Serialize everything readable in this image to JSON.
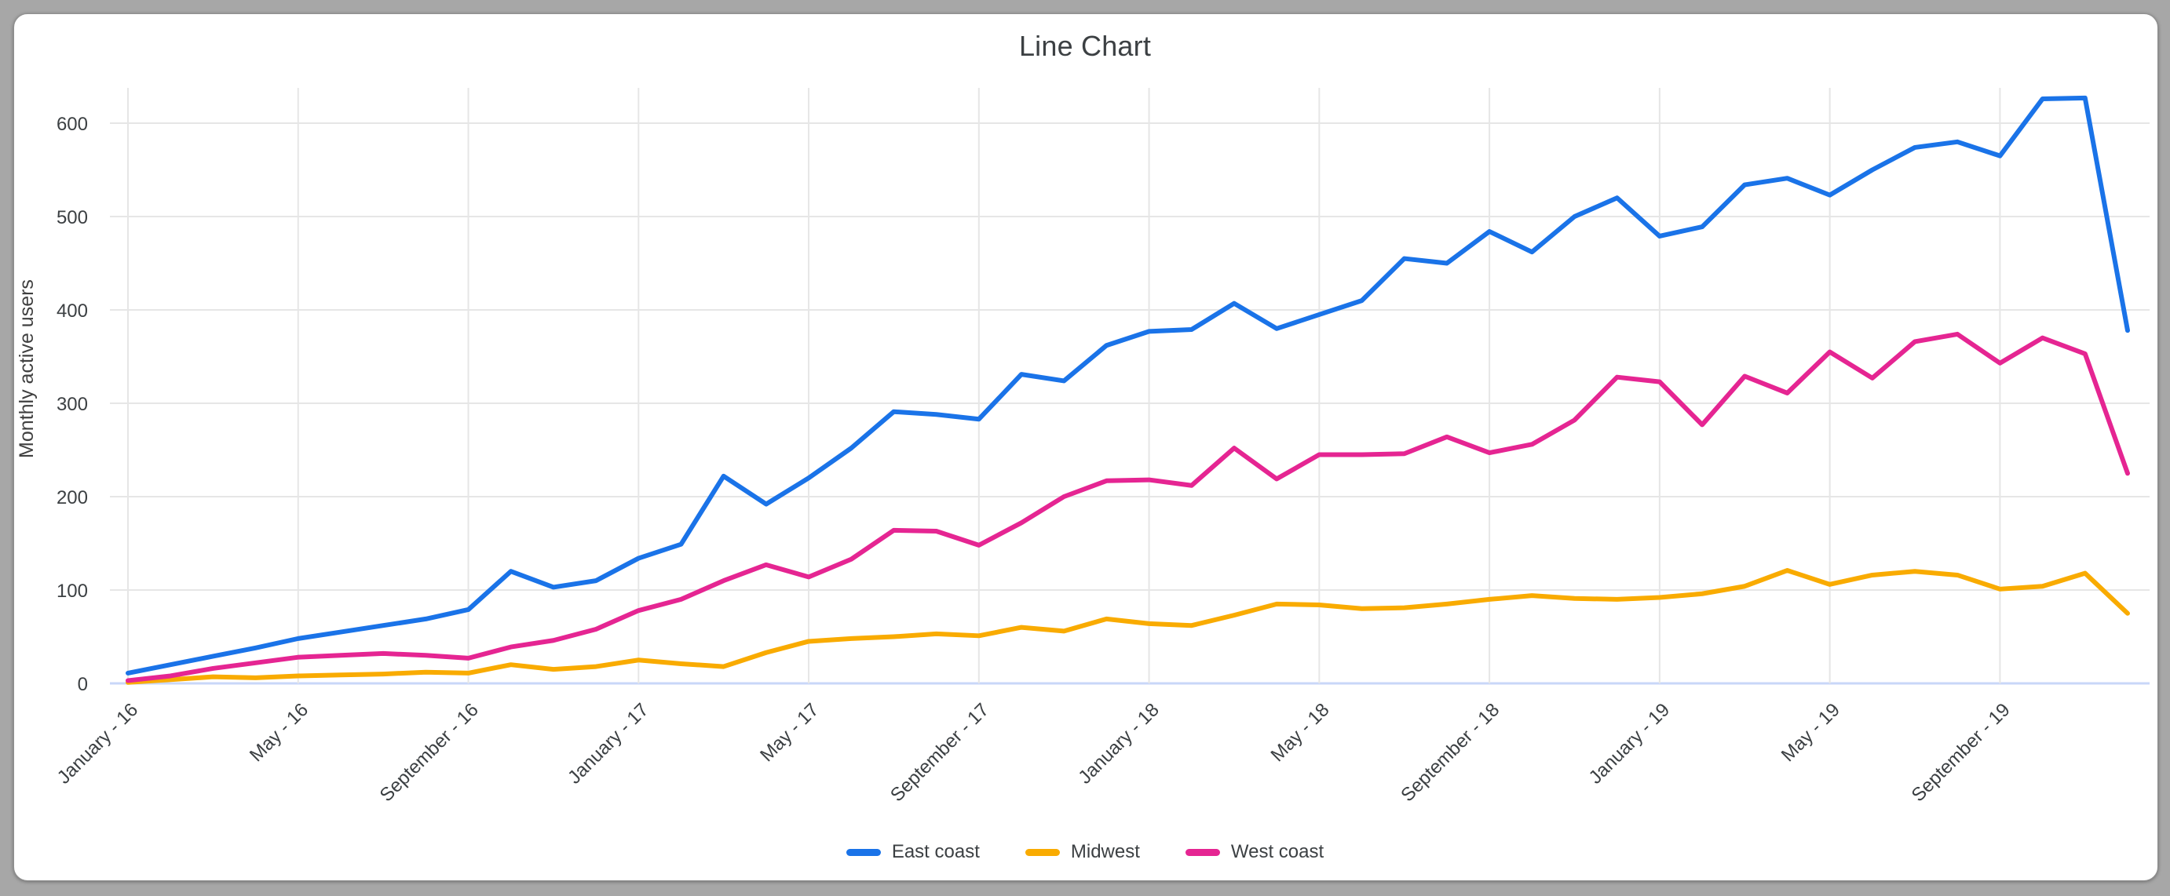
{
  "window": {
    "background_color": "#a7a7a7",
    "card_color": "#ffffff"
  },
  "chart": {
    "title": "Line Chart",
    "y_axis_title": "Monthly active users",
    "text_color": "#3c4043",
    "gridline_color": "#e6e6e6",
    "baseline_color": "#c9d7f8"
  },
  "legend": {
    "items": [
      {
        "label": "East coast",
        "color": "#1a73e8"
      },
      {
        "label": "Midwest",
        "color": "#f9ab00"
      },
      {
        "label": "West coast",
        "color": "#e52592"
      }
    ]
  },
  "chart_data": {
    "type": "line",
    "title": "Line Chart",
    "xlabel": "",
    "ylabel": "Monthly active users",
    "ylim": [
      0,
      600
    ],
    "y_ticks": [
      0,
      100,
      200,
      300,
      400,
      500,
      600
    ],
    "n_points": 48,
    "x_tick_every": 4,
    "x_tick_labels": [
      "January - 16",
      "May - 16",
      "September - 16",
      "January - 17",
      "May - 17",
      "September - 17",
      "January - 18",
      "May - 18",
      "September - 18",
      "January - 19",
      "May - 19",
      "September - 19"
    ],
    "grid": true,
    "legend_position": "bottom",
    "series": [
      {
        "name": "East coast",
        "color": "#1a73e8",
        "values": [
          11,
          20,
          29,
          38,
          48,
          55,
          62,
          69,
          79,
          120,
          103,
          110,
          134,
          149,
          222,
          192,
          220,
          252,
          291,
          288,
          283,
          331,
          324,
          362,
          377,
          379,
          407,
          380,
          395,
          410,
          455,
          450,
          484,
          462,
          500,
          520,
          479,
          489,
          534,
          541,
          523,
          550,
          574,
          580,
          565,
          626,
          627,
          378
        ]
      },
      {
        "name": "Midwest",
        "color": "#f9ab00",
        "values": [
          1,
          4,
          7,
          6,
          8,
          9,
          10,
          12,
          11,
          20,
          15,
          18,
          25,
          21,
          18,
          33,
          45,
          48,
          50,
          53,
          51,
          60,
          56,
          69,
          64,
          62,
          73,
          85,
          84,
          80,
          81,
          85,
          90,
          94,
          91,
          90,
          92,
          96,
          104,
          121,
          106,
          116,
          120,
          116,
          101,
          104,
          118,
          75
        ]
      },
      {
        "name": "West coast",
        "color": "#e52592",
        "values": [
          3,
          8,
          16,
          22,
          28,
          30,
          32,
          30,
          27,
          39,
          46,
          58,
          78,
          90,
          110,
          127,
          114,
          133,
          164,
          163,
          148,
          172,
          200,
          217,
          218,
          212,
          252,
          219,
          245,
          245,
          246,
          264,
          247,
          256,
          282,
          328,
          323,
          277,
          329,
          311,
          355,
          327,
          366,
          374,
          343,
          370,
          353,
          225
        ]
      }
    ]
  }
}
